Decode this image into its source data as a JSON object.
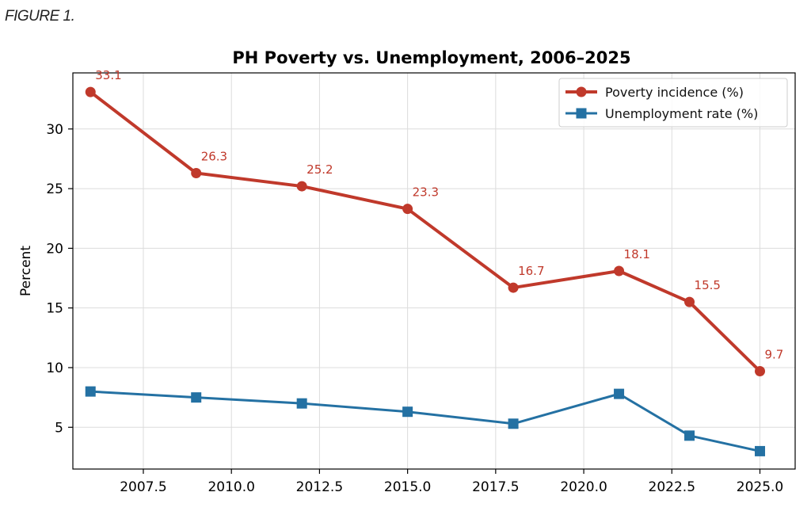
{
  "figure_label": "FIGURE 1.",
  "chart_data": {
    "type": "line",
    "title": "PH Poverty vs. Unemployment, 2006–2025",
    "xlabel": "",
    "ylabel": "Percent",
    "xlim": [
      2005.5,
      2026.0
    ],
    "ylim": [
      1.5,
      34.7
    ],
    "xticks": [
      2007.5,
      2010.0,
      2012.5,
      2015.0,
      2017.5,
      2020.0,
      2022.5,
      2025.0
    ],
    "xtick_labels": [
      "2007.5",
      "2010.0",
      "2012.5",
      "2015.0",
      "2017.5",
      "2020.0",
      "2022.5",
      "2025.0"
    ],
    "yticks": [
      5,
      10,
      15,
      20,
      25,
      30
    ],
    "ytick_labels": [
      "5",
      "10",
      "15",
      "20",
      "25",
      "30"
    ],
    "grid": true,
    "legend_position": "top-right",
    "x": [
      2006,
      2009,
      2012,
      2015,
      2018,
      2021,
      2023,
      2025
    ],
    "series": [
      {
        "name": "Poverty incidence (%)",
        "color": "#c0392b",
        "marker": "circle",
        "values": [
          33.1,
          26.3,
          25.2,
          23.3,
          16.7,
          18.1,
          15.5,
          9.7
        ],
        "labels": [
          "33.1",
          "26.3",
          "25.2",
          "23.3",
          "16.7",
          "18.1",
          "15.5",
          "9.7"
        ]
      },
      {
        "name": "Unemployment rate (%)",
        "color": "#2471a3",
        "marker": "square",
        "values": [
          8.0,
          7.5,
          7.0,
          6.3,
          5.3,
          7.8,
          4.3,
          3.0
        ]
      }
    ]
  }
}
